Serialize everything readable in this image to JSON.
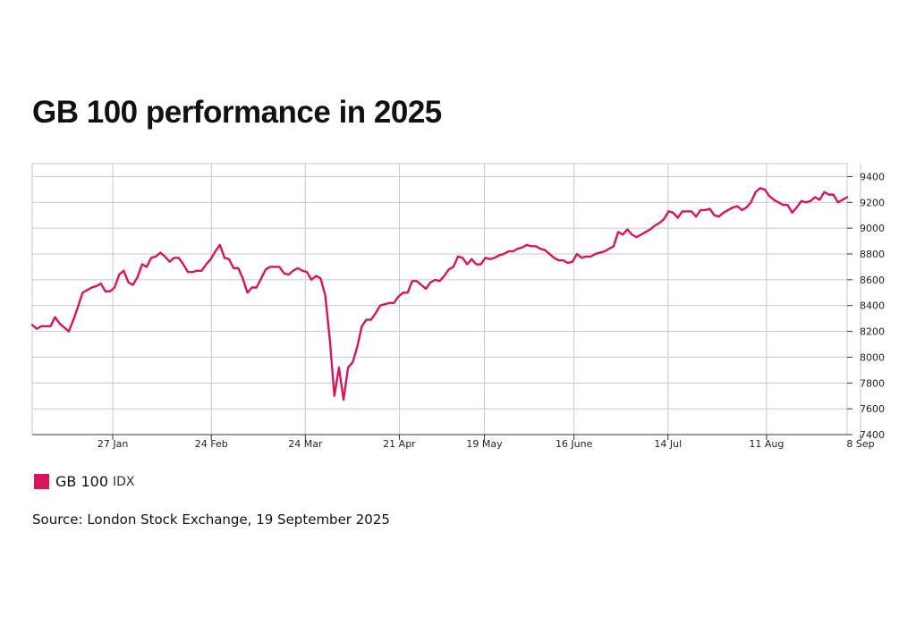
{
  "colors": {
    "series": "#d6145f",
    "grid": "#c8c8c8",
    "axis": "#333333"
  },
  "legend": {
    "label": "GB 100",
    "unit": "IDX"
  },
  "source": "Source: London Stock Exchange, 19 September 2025",
  "chart_data": {
    "type": "line",
    "title": "GB 100 performance in 2025",
    "xlabel": "",
    "ylabel": "",
    "ylim": [
      7400,
      9500
    ],
    "yticks": [
      7400,
      7600,
      7800,
      8000,
      8200,
      8400,
      8600,
      8800,
      9000,
      9200,
      9400
    ],
    "xlim": [
      0,
      182
    ],
    "xticks": [
      {
        "label": "27 Jan",
        "x": 18
      },
      {
        "label": "24 Feb",
        "x": 40
      },
      {
        "label": "24 Mar",
        "x": 61
      },
      {
        "label": "21 Apr",
        "x": 82
      },
      {
        "label": "19 May",
        "x": 101
      },
      {
        "label": "16 June",
        "x": 121
      },
      {
        "label": "14 Jul",
        "x": 142
      },
      {
        "label": "11 Aug",
        "x": 164
      },
      {
        "label": "8 Sep",
        "x": 185
      }
    ],
    "series": [
      {
        "name": "GB 100",
        "unit": "IDX",
        "values": [
          8250,
          8220,
          8240,
          8240,
          8240,
          8310,
          8260,
          8230,
          8200,
          8290,
          8390,
          8500,
          8520,
          8540,
          8550,
          8570,
          8510,
          8510,
          8540,
          8640,
          8670,
          8580,
          8560,
          8620,
          8720,
          8700,
          8770,
          8780,
          8810,
          8780,
          8740,
          8770,
          8770,
          8720,
          8660,
          8660,
          8670,
          8670,
          8720,
          8760,
          8820,
          8870,
          8770,
          8760,
          8690,
          8690,
          8610,
          8500,
          8540,
          8540,
          8610,
          8680,
          8700,
          8700,
          8700,
          8650,
          8640,
          8670,
          8690,
          8670,
          8660,
          8600,
          8630,
          8610,
          8480,
          8140,
          7700,
          7920,
          7670,
          7920,
          7960,
          8080,
          8240,
          8290,
          8290,
          8340,
          8400,
          8410,
          8420,
          8420,
          8470,
          8500,
          8500,
          8590,
          8590,
          8560,
          8530,
          8580,
          8600,
          8590,
          8630,
          8680,
          8700,
          8780,
          8770,
          8720,
          8760,
          8720,
          8720,
          8770,
          8760,
          8770,
          8790,
          8800,
          8820,
          8820,
          8840,
          8850,
          8870,
          8860,
          8860,
          8840,
          8830,
          8800,
          8770,
          8750,
          8750,
          8730,
          8740,
          8800,
          8770,
          8780,
          8780,
          8800,
          8810,
          8820,
          8840,
          8860,
          8970,
          8950,
          8990,
          8950,
          8930,
          8950,
          8970,
          8990,
          9020,
          9040,
          9070,
          9130,
          9120,
          9080,
          9130,
          9130,
          9130,
          9090,
          9140,
          9140,
          9150,
          9100,
          9090,
          9120,
          9140,
          9160,
          9170,
          9140,
          9160,
          9200,
          9280,
          9310,
          9300,
          9250,
          9220,
          9200,
          9180,
          9180,
          9120,
          9160,
          9210,
          9200,
          9210,
          9240,
          9220,
          9280,
          9260,
          9260,
          9200,
          9220,
          9240
        ]
      }
    ]
  }
}
